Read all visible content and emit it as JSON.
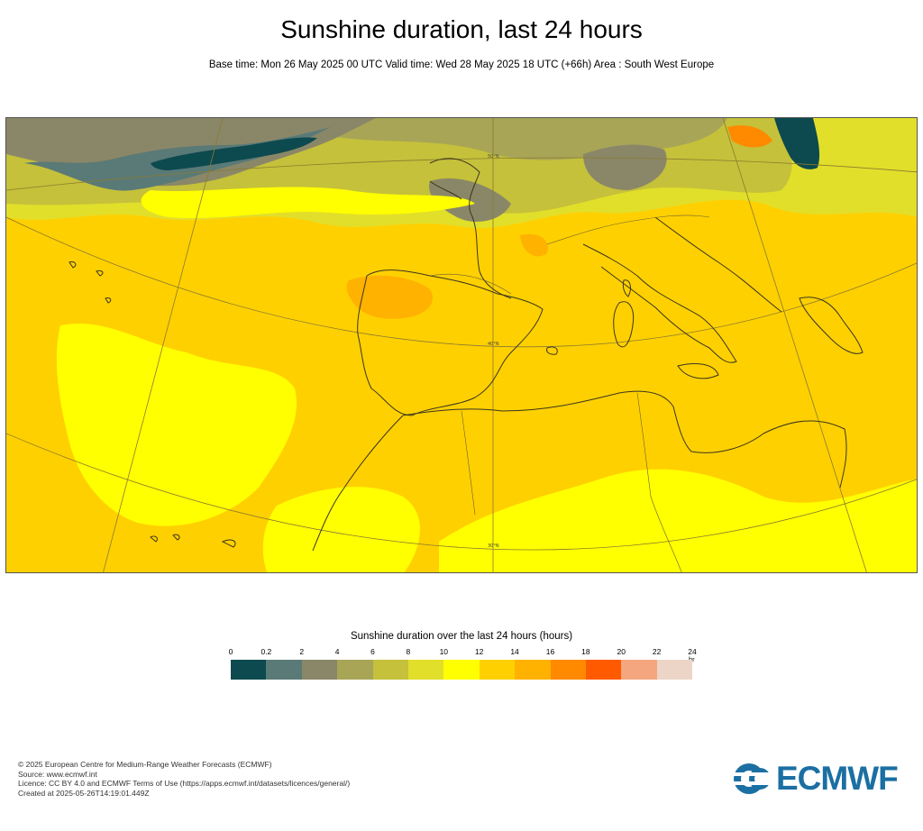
{
  "title": "Sunshine duration, last 24 hours",
  "subtitle": "Base time: Mon 26 May 2025 00 UTC Valid time: Wed 28 May 2025 18 UTC (+66h) Area : South West Europe",
  "map": {
    "area": "South West Europe",
    "lat_labels": [
      "50°N",
      "40°N",
      "30°N"
    ]
  },
  "legend": {
    "title": "Sunshine duration over the last 24 hours (hours)",
    "unit": "hr",
    "ticks": [
      "0",
      "0.2",
      "2",
      "4",
      "6",
      "8",
      "10",
      "12",
      "14",
      "16",
      "18",
      "20",
      "22",
      "24"
    ],
    "colors": [
      "#0d4a4f",
      "#5a7a77",
      "#8a8768",
      "#a8a557",
      "#c5c13a",
      "#e2df2a",
      "#ffff00",
      "#ffd000",
      "#ffb200",
      "#ff8a00",
      "#ff5a00",
      "#f4a67e",
      "#ecd5c6"
    ]
  },
  "footer": {
    "line1": "© 2025 European Centre for Medium-Range Weather Forecasts (ECMWF)",
    "line2": "Source: www.ecmwf.int",
    "line3": "Licence: CC BY 4.0 and ECMWF Terms of Use (https://apps.ecmwf.int/datasets/licences/general/)",
    "line4": "Created at 2025-05-26T14:19:01.449Z"
  },
  "logo": {
    "text": "ECMWF",
    "color": "#1b6fa3"
  }
}
